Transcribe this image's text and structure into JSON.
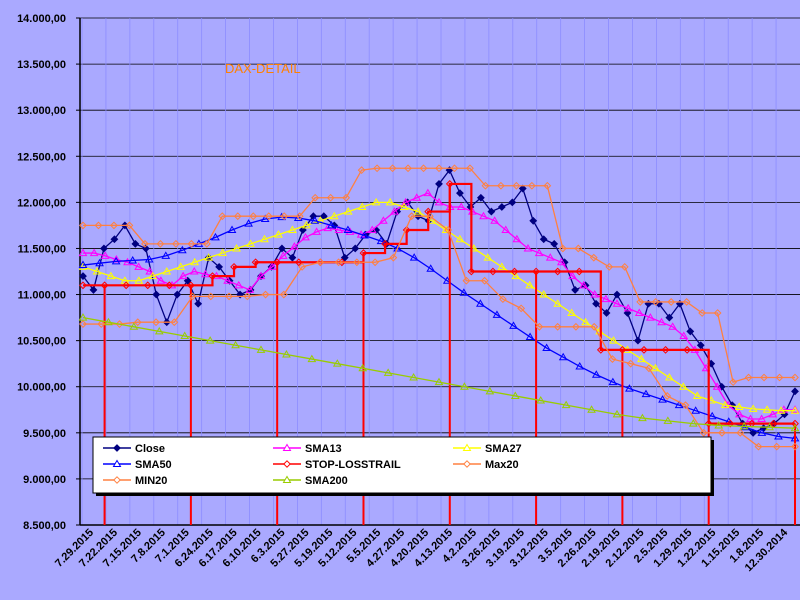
{
  "chart_data": {
    "type": "line",
    "title": "DAX-DETAIL",
    "ylim": [
      8500,
      14000
    ],
    "ytick_labels": [
      "14.000,00",
      "13.500,00",
      "13.000,00",
      "12.500,00",
      "12.000,00",
      "11.500,00",
      "11.000,00",
      "10.500,00",
      "10.000,00",
      "9.500,00",
      "9.000,00",
      "8.500,00"
    ],
    "ytick_values": [
      14000,
      13500,
      13000,
      12500,
      12000,
      11500,
      11000,
      10500,
      10000,
      9500,
      9000,
      8500
    ],
    "xtick_labels": [
      "7.29.2015",
      "7.22.2015",
      "7.15.2015",
      "7.8.2015",
      "7.1.2015",
      "6.24.2015",
      "6.17.2015",
      "6.10.2015",
      "6.3.2015",
      "5.27.2015",
      "5.19.2015",
      "5.12.2015",
      "5.5.2015",
      "4.27.2015",
      "4.20.2015",
      "4.13.2015",
      "4.2.2015",
      "3.26.2015",
      "3.19.2015",
      "3.12.2015",
      "3.5.2015",
      "2.26.2015",
      "2.19.2015",
      "2.12.2015",
      "2.5.2015",
      "1.29.2015",
      "1.22.2015",
      "1.15.2015",
      "1.8.2015",
      "12.30.2014"
    ],
    "series": [
      {
        "name": "Close",
        "color": "#000080",
        "marker": "diamond",
        "values": [
          11200,
          11050,
          11500,
          11600,
          11750,
          11550,
          11500,
          11000,
          10700,
          11000,
          11150,
          10900,
          11400,
          11300,
          11150,
          11000,
          11050,
          11200,
          11300,
          11500,
          11400,
          11700,
          11850,
          11850,
          11750,
          11400,
          11500,
          11650,
          11700,
          11550,
          11900,
          12000,
          11850,
          11800,
          12200,
          12350,
          12100,
          11950,
          12050,
          11900,
          11950,
          12000,
          12150,
          11800,
          11600,
          11550,
          11350,
          11050,
          11100,
          10900,
          10800,
          11000,
          10800,
          10500,
          10900,
          10900,
          10750,
          10900,
          10600,
          10450,
          10250,
          10000,
          9800,
          9600,
          9500,
          9550,
          9600,
          9700,
          9950
        ]
      },
      {
        "name": "SMA13",
        "color": "#ff00ff",
        "marker": "triangle",
        "values": [
          11450,
          11450,
          11420,
          11380,
          11350,
          11300,
          11250,
          11150,
          11100,
          11200,
          11250,
          11220,
          11200,
          11150,
          11100,
          11050,
          11200,
          11300,
          11420,
          11520,
          11620,
          11680,
          11720,
          11700,
          11680,
          11650,
          11700,
          11800,
          11900,
          12000,
          12050,
          12100,
          12000,
          11950,
          11950,
          11900,
          11850,
          11800,
          11700,
          11600,
          11500,
          11450,
          11400,
          11350,
          11200,
          11100,
          11000,
          10950,
          10900,
          10850,
          10800,
          10750,
          10700,
          10650,
          10550,
          10400,
          10200,
          10000,
          9800,
          9700,
          9650,
          9650,
          9700,
          9750,
          9750
        ]
      },
      {
        "name": "SMA27",
        "color": "#ffff00",
        "marker": "triangle",
        "values": [
          11300,
          11250,
          11200,
          11150,
          11150,
          11200,
          11250,
          11300,
          11350,
          11400,
          11450,
          11500,
          11550,
          11600,
          11650,
          11700,
          11750,
          11800,
          11850,
          11900,
          11950,
          12000,
          12000,
          11950,
          11900,
          11800,
          11700,
          11600,
          11500,
          11400,
          11300,
          11200,
          11100,
          11000,
          10900,
          10800,
          10700,
          10600,
          10500,
          10400,
          10300,
          10200,
          10100,
          10000,
          9900,
          9850,
          9800,
          9780,
          9760,
          9750,
          9740,
          9740
        ]
      },
      {
        "name": "SMA50",
        "color": "#0000ff",
        "marker": "triangle",
        "values": [
          11320,
          11340,
          11360,
          11370,
          11380,
          11420,
          11480,
          11550,
          11620,
          11700,
          11770,
          11820,
          11840,
          11830,
          11800,
          11750,
          11700,
          11640,
          11580,
          11500,
          11400,
          11280,
          11150,
          11020,
          10900,
          10780,
          10660,
          10540,
          10420,
          10320,
          10220,
          10130,
          10050,
          9980,
          9920,
          9860,
          9800,
          9740,
          9680,
          9620,
          9560,
          9500,
          9460,
          9440
        ]
      },
      {
        "name": "STOP-LOSSTRAIL",
        "color": "#ff0000",
        "marker": "diamond",
        "values": [
          11100,
          11100,
          11100,
          11100,
          11100,
          11100,
          11200,
          11300,
          11350,
          11350,
          11350,
          11350,
          11350,
          11450,
          11550,
          11700,
          11900,
          12200,
          11250,
          11250,
          11250,
          11250,
          11250,
          11250,
          10400,
          10400,
          10400,
          10400,
          10400,
          9600,
          9600,
          9600,
          9600,
          9600
        ]
      },
      {
        "name": "Max20",
        "color": "#ff8040",
        "marker": "diamond",
        "values": [
          11750,
          11750,
          11750,
          11750,
          11550,
          11550,
          11550,
          11550,
          11550,
          11850,
          11850,
          11850,
          11850,
          11850,
          11850,
          12050,
          12050,
          12050,
          12350,
          12370,
          12370,
          12370,
          12370,
          12370,
          12370,
          12370,
          12180,
          12180,
          12180,
          12180,
          12180,
          11500,
          11500,
          11400,
          11300,
          11300,
          10920,
          10920,
          10920,
          10920,
          10800,
          10800,
          10050,
          10100,
          10100,
          10100,
          10100
        ]
      },
      {
        "name": "MIN20",
        "color": "#ff8040",
        "marker": "diamond",
        "values": [
          10680,
          10680,
          10680,
          10700,
          10700,
          10700,
          10980,
          10980,
          10980,
          10980,
          11000,
          11000,
          11300,
          11350,
          11350,
          11350,
          11350,
          11400,
          11850,
          11850,
          11700,
          11150,
          11150,
          10950,
          10850,
          10650,
          10650,
          10650,
          10650,
          10300,
          10250,
          10200,
          9900,
          9800,
          9500,
          9500,
          9500,
          9350,
          9350,
          9350
        ]
      },
      {
        "name": "SMA200",
        "color": "#99cc00",
        "marker": "triangle",
        "values": [
          10750,
          10700,
          10650,
          10600,
          10550,
          10500,
          10450,
          10400,
          10350,
          10300,
          10250,
          10200,
          10150,
          10100,
          10050,
          10000,
          9950,
          9900,
          9850,
          9800,
          9750,
          9700,
          9660,
          9630,
          9600,
          9580,
          9570,
          9560,
          9550
        ]
      }
    ],
    "legend": {
      "placement": "bottom-left",
      "entries": [
        "Close",
        "SMA13",
        "SMA27",
        "SMA50",
        "STOP-LOSSTRAIL",
        "Max20",
        "MIN20",
        "SMA200"
      ]
    }
  }
}
